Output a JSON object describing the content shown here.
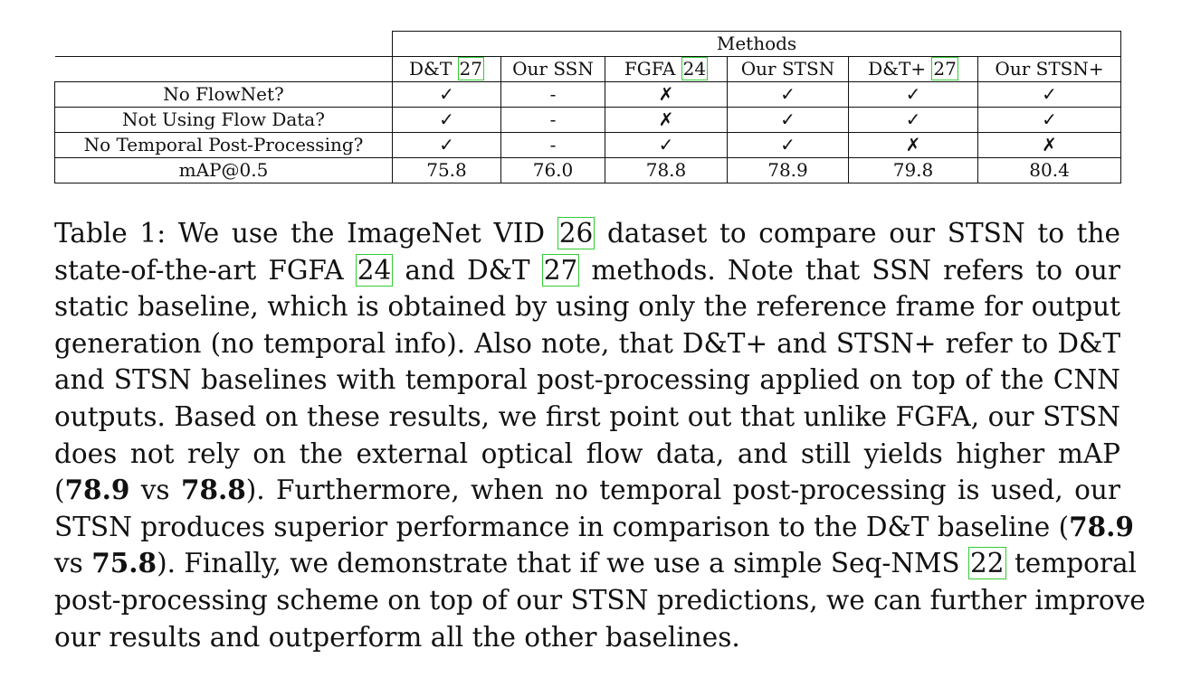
{
  "table": {
    "group_header": "Methods",
    "columns": [
      {
        "label": "D&T",
        "cite": "27"
      },
      {
        "label": "Our SSN",
        "cite": ""
      },
      {
        "label": "FGFA",
        "cite": "24"
      },
      {
        "label": "Our STSN",
        "cite": ""
      },
      {
        "label": "D&T+",
        "cite": "27"
      },
      {
        "label": "Our STSN+",
        "cite": ""
      }
    ],
    "rows": [
      {
        "label": "No FlowNet?",
        "cells": [
          "✓",
          "-",
          "✗",
          "✓",
          "✓",
          "✓"
        ]
      },
      {
        "label": "Not Using Flow Data?",
        "cells": [
          "✓",
          "-",
          "✗",
          "✓",
          "✓",
          "✓"
        ]
      },
      {
        "label": "No Temporal Post-Processing?",
        "cells": [
          "✓",
          "-",
          "✓",
          "✓",
          "✗",
          "✗"
        ]
      },
      {
        "label": "mAP@0.5",
        "cells": [
          "75.8",
          "76.0",
          "78.8",
          "78.9",
          "79.8",
          "80.4"
        ]
      }
    ]
  },
  "caption": {
    "label": "Table 1:",
    "t01": "We use the ImageNet VID",
    "c01": "26",
    "t02": "dataset to compare our STSN to the",
    "t03": "state-of-the-art FGFA",
    "c02": "24",
    "t04": "and D&T",
    "c03": "27",
    "t05": "methods. Note that SSN refers to our",
    "t06": "static baseline, which is obtained by using only the reference frame for output",
    "t07": "generation (no temporal info). Also note, that D&T+ and STSN+ refer to D&T",
    "t08": "and STSN baselines with temporal post-processing applied on top of the CNN",
    "t09": "outputs. Based on these results, we first point out that unlike FGFA, our STSN",
    "t10": "does not rely on the external optical flow data, and still yields higher mAP",
    "t11": "(",
    "b01": "78.9",
    "t12": "vs",
    "b02": "78.8",
    "t13": "). Furthermore, when no temporal post-processing is used, our",
    "t14": "STSN produces superior performance in comparison to the D&T baseline (",
    "b03": "78.9",
    "t15": "vs",
    "b04": "75.8",
    "t16": "). Finally, we demonstrate that if we use a simple Seq-NMS",
    "c04": "22",
    "t17": "temporal",
    "t18": "post-processing scheme on top of our STSN predictions, we can further improve",
    "t19": "our results and outperform all the other baselines."
  }
}
